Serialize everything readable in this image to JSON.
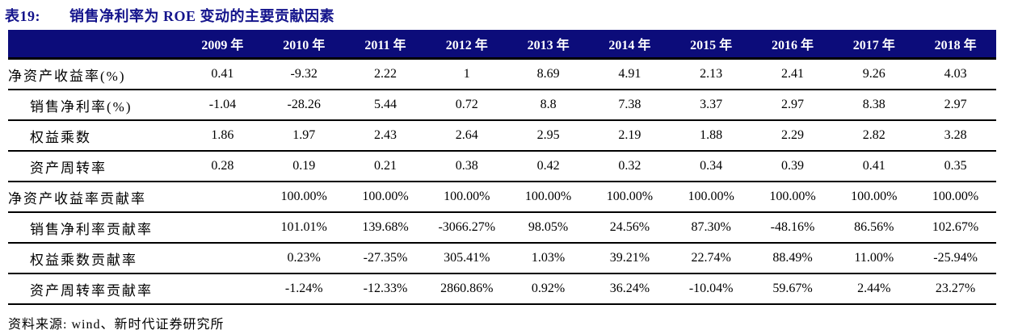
{
  "title": {
    "label": "表19:",
    "text": "销售净利率为 ROE 变动的主要贡献因素"
  },
  "table": {
    "columns": [
      "2009 年",
      "2010 年",
      "2011 年",
      "2012 年",
      "2013 年",
      "2014 年",
      "2015 年",
      "2016 年",
      "2017 年",
      "2018 年"
    ],
    "rows": [
      {
        "label": "净资产收益率(%)",
        "indent": false,
        "values": [
          "0.41",
          "-9.32",
          "2.22",
          "1",
          "8.69",
          "4.91",
          "2.13",
          "2.41",
          "9.26",
          "4.03"
        ]
      },
      {
        "label": "销售净利率(%)",
        "indent": true,
        "values": [
          "-1.04",
          "-28.26",
          "5.44",
          "0.72",
          "8.8",
          "7.38",
          "3.37",
          "2.97",
          "8.38",
          "2.97"
        ]
      },
      {
        "label": "权益乘数",
        "indent": true,
        "values": [
          "1.86",
          "1.97",
          "2.43",
          "2.64",
          "2.95",
          "2.19",
          "1.88",
          "2.29",
          "2.82",
          "3.28"
        ]
      },
      {
        "label": "资产周转率",
        "indent": true,
        "values": [
          "0.28",
          "0.19",
          "0.21",
          "0.38",
          "0.42",
          "0.32",
          "0.34",
          "0.39",
          "0.41",
          "0.35"
        ]
      },
      {
        "label": "净资产收益率贡献率",
        "indent": false,
        "values": [
          "",
          "100.00%",
          "100.00%",
          "100.00%",
          "100.00%",
          "100.00%",
          "100.00%",
          "100.00%",
          "100.00%",
          "100.00%"
        ]
      },
      {
        "label": "销售净利率贡献率",
        "indent": true,
        "values": [
          "",
          "101.01%",
          "139.68%",
          "-3066.27%",
          "98.05%",
          "24.56%",
          "87.30%",
          "-48.16%",
          "86.56%",
          "102.67%"
        ]
      },
      {
        "label": "权益乘数贡献率",
        "indent": true,
        "values": [
          "",
          "0.23%",
          "-27.35%",
          "305.41%",
          "1.03%",
          "39.21%",
          "22.74%",
          "88.49%",
          "11.00%",
          "-25.94%"
        ]
      },
      {
        "label": "资产周转率贡献率",
        "indent": true,
        "values": [
          "",
          "-1.24%",
          "-12.33%",
          "2860.86%",
          "0.92%",
          "36.24%",
          "-10.04%",
          "59.67%",
          "2.44%",
          "23.27%"
        ]
      }
    ]
  },
  "footer": {
    "text": "资料来源: wind、新时代证券研究所"
  },
  "colors": {
    "header_bg": "#0c0c7a",
    "header_text": "#ffffff",
    "title_color": "#14148c",
    "rule_color": "#000000"
  }
}
